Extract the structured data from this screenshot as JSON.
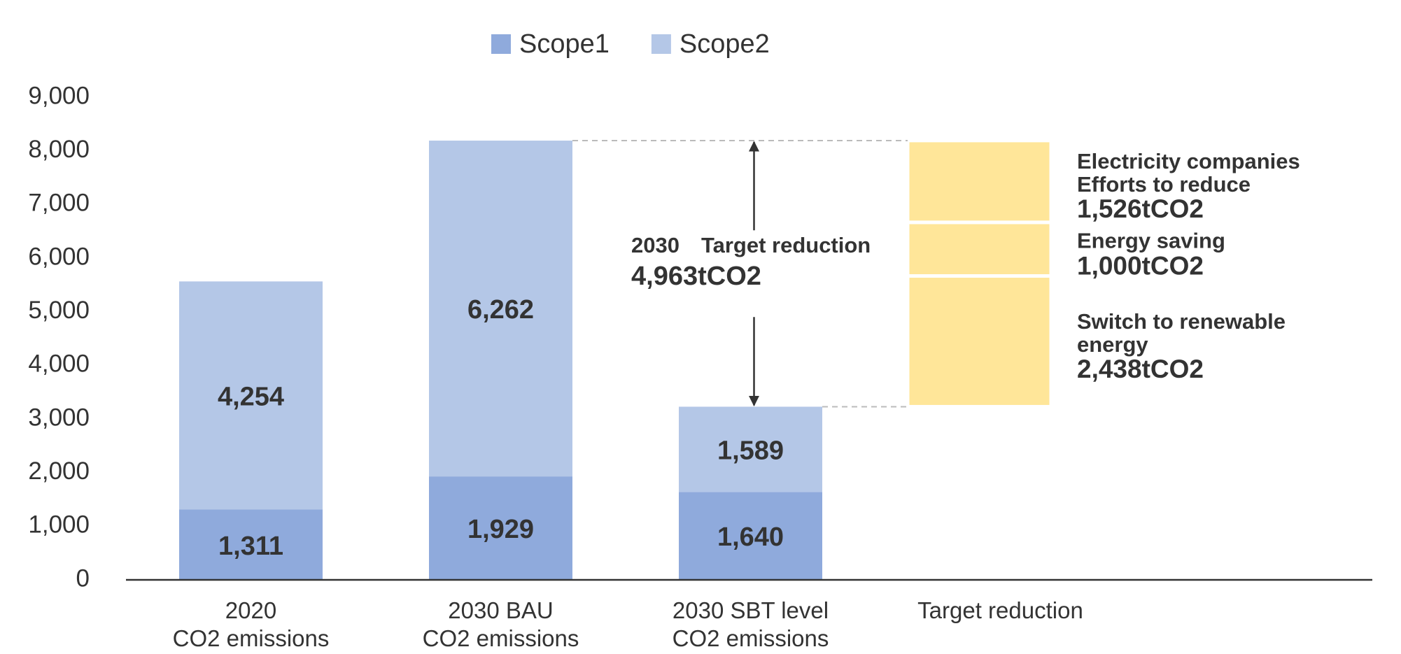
{
  "chart_data": {
    "type": "bar",
    "stacked": true,
    "legend": "top",
    "categories": [
      "2020\nCO2 emissions",
      "2030 BAU\nCO2 emissions",
      "2030 SBT level\nCO2 emissions",
      "Target reduction"
    ],
    "series": [
      {
        "name": "Scope1",
        "color": "#8faadc",
        "values": [
          1311,
          1929,
          1640,
          null
        ],
        "value_labels": [
          "1,311",
          "1,929",
          "1,640",
          null
        ]
      },
      {
        "name": "Scope2",
        "color": "#b4c7e7",
        "values": [
          4254,
          6262,
          1589,
          null
        ],
        "value_labels": [
          "4,254",
          "6,262",
          "1,589",
          null
        ]
      }
    ],
    "ylim": [
      0,
      9000
    ],
    "yticks": [
      0,
      {
        "value": 1000,
        "label": "1,000"
      },
      {
        "value": 2000,
        "label": "2,000"
      },
      {
        "value": 3000,
        "label": "3,000"
      },
      {
        "value": 4000,
        "label": "4,000"
      },
      {
        "value": 5000,
        "label": "5,000"
      },
      {
        "value": 6000,
        "label": "6,000"
      },
      {
        "value": 7000,
        "label": "7,000"
      },
      {
        "value": 8000,
        "label": "8,000"
      },
      {
        "value": 9000,
        "label": "9,000"
      }
    ],
    "annotation": {
      "text": "2030　Target reduction",
      "value": 4963,
      "value_label": "4,963tCO2"
    },
    "reduction": {
      "color": "#ffe699",
      "segments": [
        {
          "label": "Switch to renewable\nenergy",
          "value": 2438,
          "value_label": "2,438tCO2"
        },
        {
          "label": "Energy saving",
          "value": 1000,
          "value_label": "1,000tCO2"
        },
        {
          "label": "Electricity companies\nEfforts to reduce",
          "value": 1526,
          "value_label": "1,526tCO2"
        }
      ]
    }
  }
}
